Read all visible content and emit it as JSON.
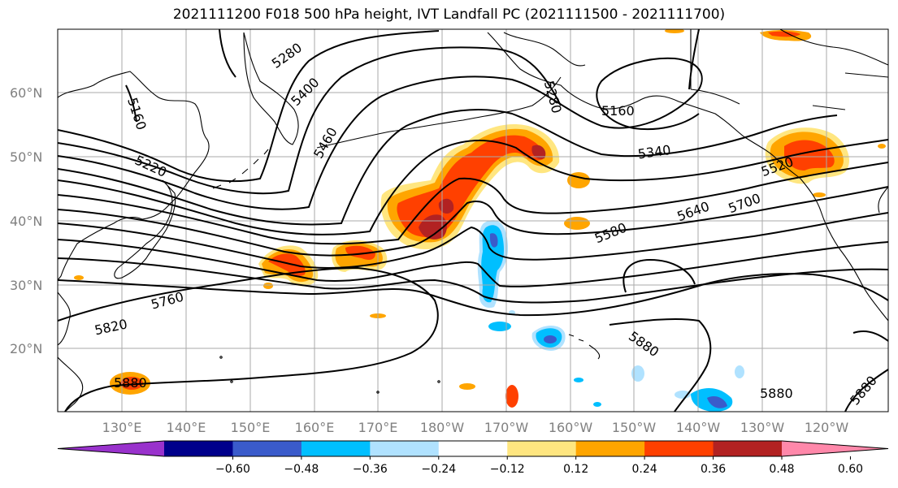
{
  "title": "2021111200 F018 500 hPa height, IVT Landfall PC (2021111500 - 2021111700)",
  "lat_labels": [
    "60°N",
    "50°N",
    "40°N",
    "30°N",
    "20°N"
  ],
  "lon_labels": [
    "130°E",
    "140°E",
    "150°E",
    "160°E",
    "170°E",
    "180°W",
    "170°W",
    "160°W",
    "150°W",
    "140°W",
    "130°W",
    "120°W"
  ],
  "contour_labels": [
    "5160",
    "5220",
    "5280",
    "5340",
    "5400",
    "5460",
    "5520",
    "5580",
    "5640",
    "5700",
    "5760",
    "5820",
    "5880",
    "5880",
    "5880",
    "5880",
    "5160",
    "5280"
  ],
  "colorbar": {
    "colors": [
      "#9932CC",
      "#00008B",
      "#3A5BCB",
      "#00BFFF",
      "#B0E2FF",
      "#FFFFFF",
      "#FFE680",
      "#FFA500",
      "#FF4000",
      "#B22222",
      "#FF88AA"
    ],
    "ticks": [
      "−0.60",
      "−0.48",
      "−0.36",
      "−0.24",
      "−0.12",
      "0.12",
      "0.24",
      "0.36",
      "0.48",
      "0.60"
    ]
  },
  "colors": {
    "positive_low": "#FFE680",
    "positive_mid": "#FFA500",
    "positive_high": "#FF4000",
    "positive_max": "#B22222",
    "negative_low": "#B0E2FF",
    "negative_mid": "#00BFFF",
    "negative_high": "#3A5BCB",
    "grid": "#aaaaaa"
  }
}
